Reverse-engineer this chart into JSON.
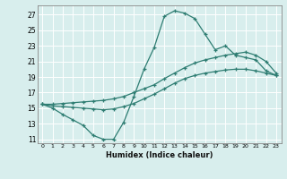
{
  "xlabel": "Humidex (Indice chaleur)",
  "bg_color": "#d8eeed",
  "grid_color": "#ffffff",
  "line_color": "#2e7d72",
  "xlim": [
    -0.5,
    23.5
  ],
  "ylim": [
    10.5,
    28.2
  ],
  "xticks": [
    0,
    1,
    2,
    3,
    4,
    5,
    6,
    7,
    8,
    9,
    10,
    11,
    12,
    13,
    14,
    15,
    16,
    17,
    18,
    19,
    20,
    21,
    22,
    23
  ],
  "yticks": [
    11,
    13,
    15,
    17,
    19,
    21,
    23,
    25,
    27
  ],
  "line1_x": [
    0,
    1,
    2,
    3,
    4,
    5,
    6,
    7,
    8,
    9,
    10,
    11,
    12,
    13,
    14,
    15,
    16,
    17,
    18,
    19,
    20,
    21,
    22,
    23
  ],
  "line1_y": [
    15.5,
    15.0,
    14.2,
    13.5,
    12.8,
    11.5,
    11.0,
    11.0,
    13.2,
    16.5,
    20.0,
    22.8,
    26.8,
    27.5,
    27.2,
    26.5,
    24.5,
    22.5,
    23.0,
    21.8,
    21.5,
    21.2,
    19.8,
    19.2
  ],
  "line2_x": [
    0,
    1,
    2,
    3,
    4,
    5,
    6,
    7,
    8,
    9,
    10,
    11,
    12,
    13,
    14,
    15,
    16,
    17,
    18,
    19,
    20,
    21,
    22,
    23
  ],
  "line2_y": [
    15.5,
    15.5,
    15.6,
    15.7,
    15.8,
    15.9,
    16.0,
    16.2,
    16.5,
    17.0,
    17.5,
    18.0,
    18.8,
    19.5,
    20.2,
    20.8,
    21.2,
    21.5,
    21.8,
    22.0,
    22.2,
    21.8,
    21.0,
    19.5
  ],
  "line3_x": [
    0,
    1,
    2,
    3,
    4,
    5,
    6,
    7,
    8,
    9,
    10,
    11,
    12,
    13,
    14,
    15,
    16,
    17,
    18,
    19,
    20,
    21,
    22,
    23
  ],
  "line3_y": [
    15.5,
    15.3,
    15.2,
    15.1,
    15.0,
    14.9,
    14.8,
    14.9,
    15.2,
    15.6,
    16.2,
    16.8,
    17.5,
    18.2,
    18.8,
    19.2,
    19.5,
    19.7,
    19.9,
    20.0,
    20.0,
    19.8,
    19.5,
    19.2
  ]
}
